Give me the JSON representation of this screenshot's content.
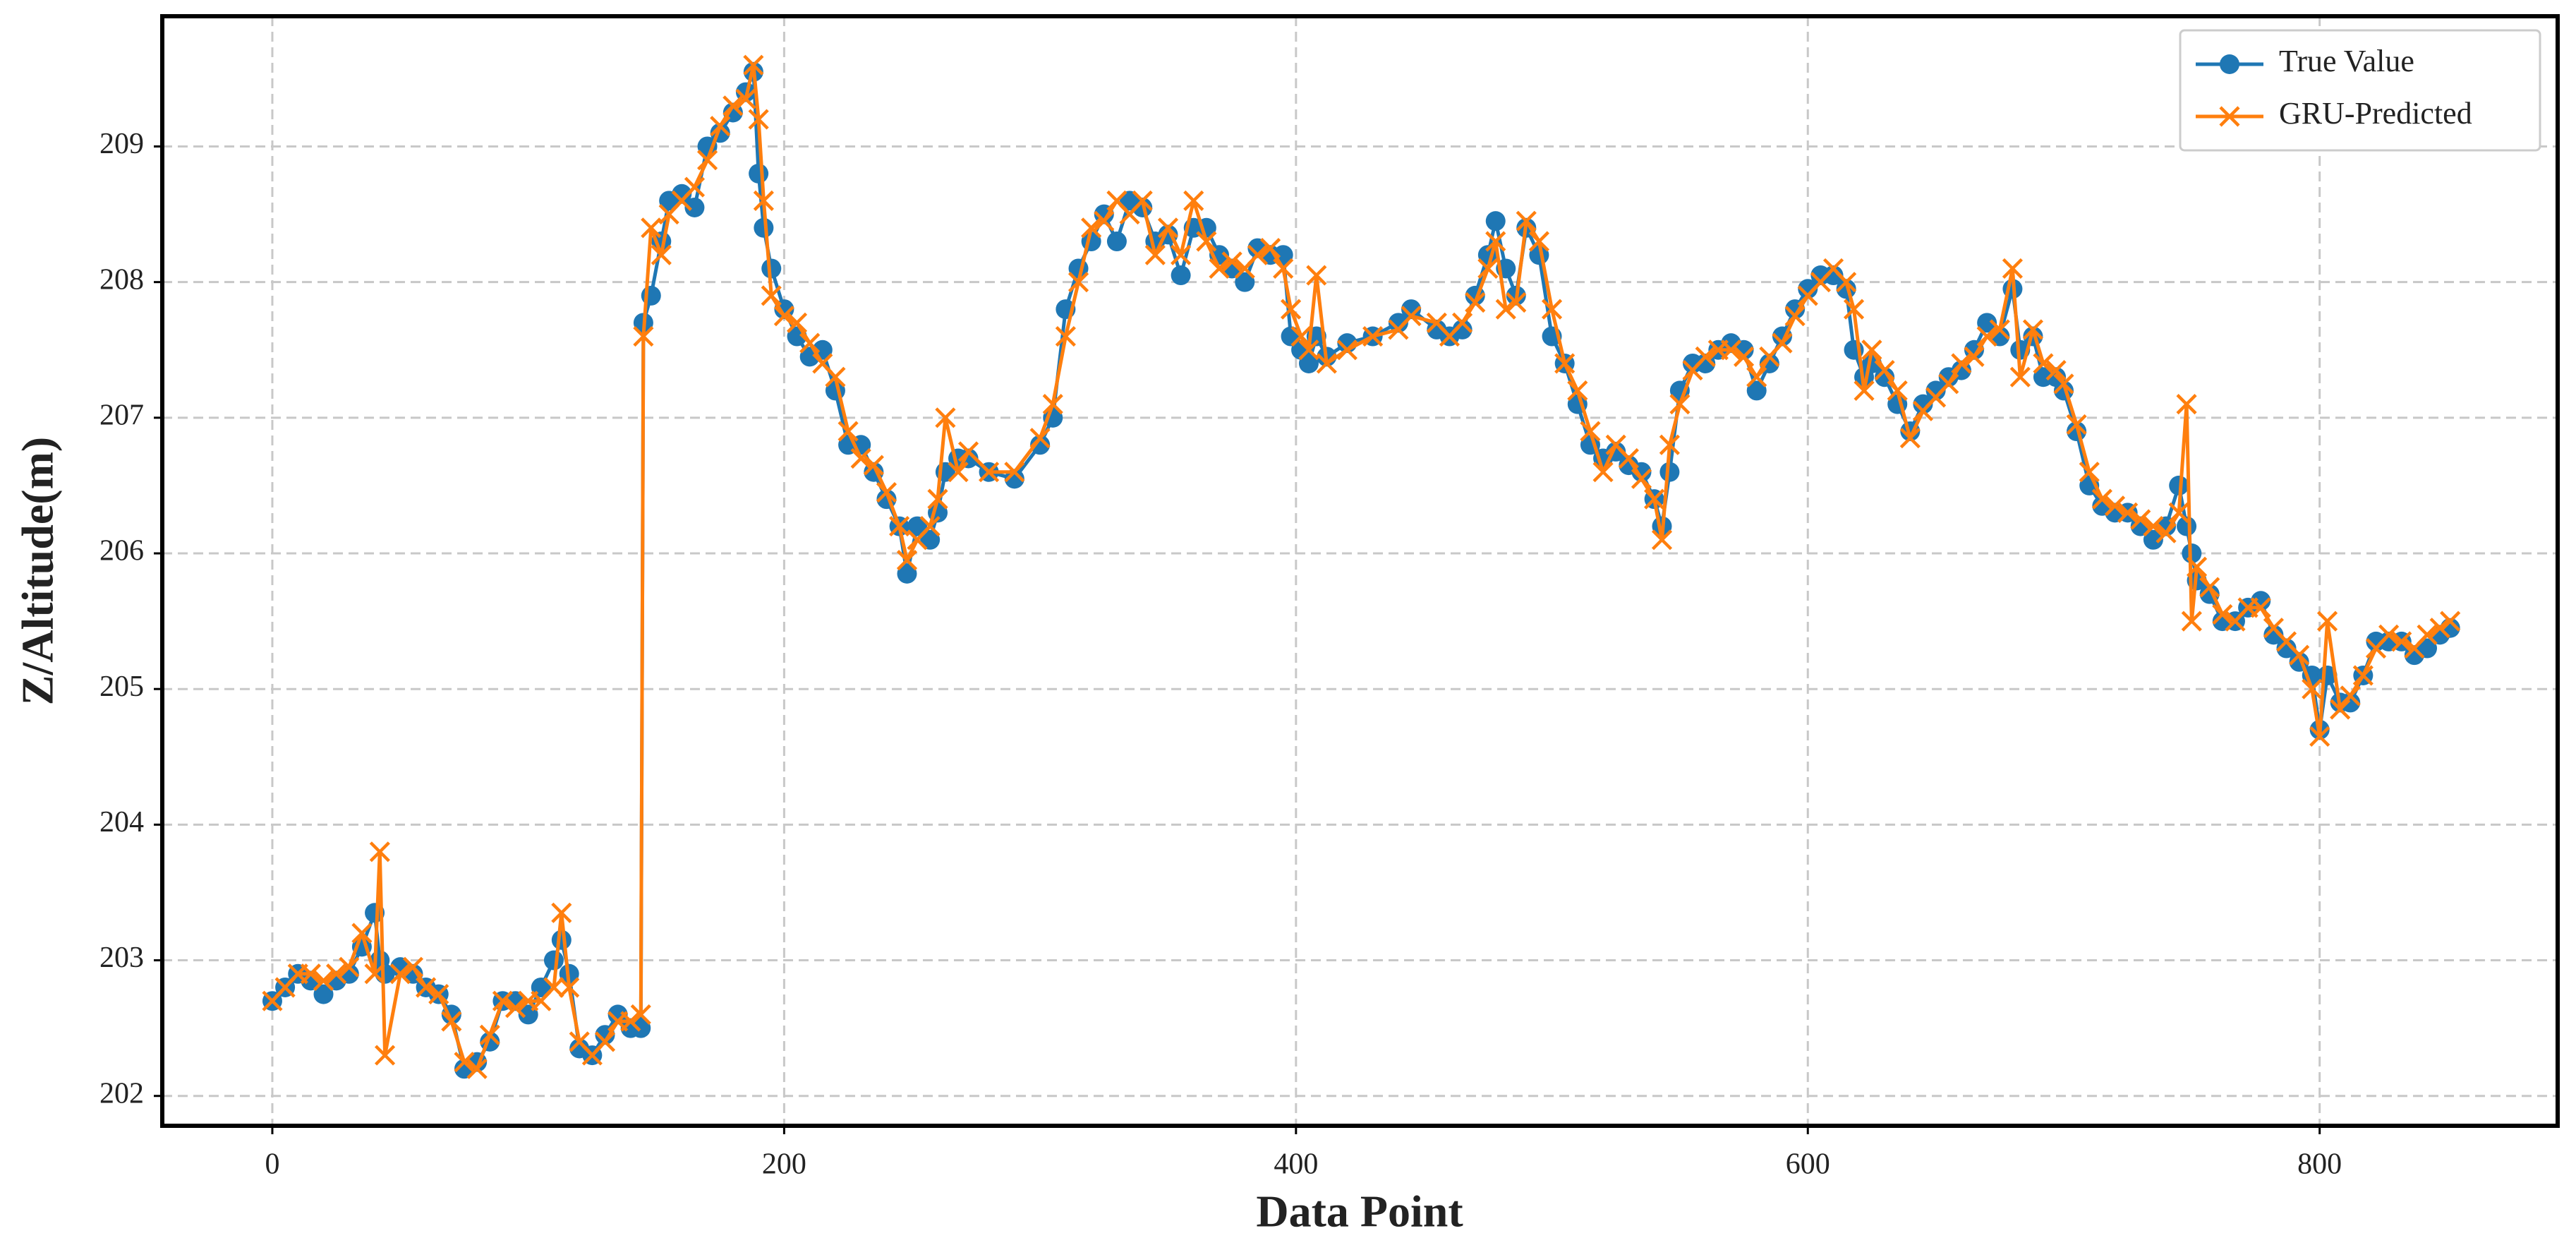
{
  "chart_data": {
    "type": "line",
    "xlabel": "Data Point",
    "ylabel": "Z/Altitude(m)",
    "x": [
      0,
      5,
      10,
      15,
      20,
      25,
      30,
      35,
      40,
      42,
      44,
      50,
      55,
      60,
      65,
      70,
      75,
      80,
      85,
      90,
      95,
      100,
      105,
      110,
      113,
      116,
      120,
      125,
      130,
      135,
      140,
      144,
      145,
      148,
      152,
      155,
      160,
      165,
      170,
      175,
      180,
      185,
      188,
      190,
      192,
      195,
      200,
      205,
      210,
      215,
      220,
      225,
      230,
      235,
      240,
      245,
      248,
      252,
      257,
      260,
      263,
      268,
      272,
      280,
      290,
      300,
      305,
      310,
      315,
      320,
      325,
      330,
      335,
      340,
      345,
      350,
      355,
      360,
      365,
      370,
      375,
      380,
      385,
      390,
      395,
      398,
      402,
      405,
      408,
      412,
      420,
      430,
      440,
      445,
      455,
      460,
      465,
      470,
      475,
      478,
      482,
      486,
      490,
      495,
      500,
      505,
      510,
      515,
      520,
      525,
      530,
      535,
      540,
      543,
      546,
      550,
      555,
      560,
      565,
      570,
      575,
      580,
      585,
      590,
      595,
      600,
      605,
      610,
      615,
      618,
      622,
      625,
      630,
      635,
      640,
      645,
      650,
      655,
      660,
      665,
      670,
      675,
      680,
      683,
      688,
      692,
      697,
      700,
      705,
      710,
      715,
      720,
      725,
      730,
      735,
      740,
      745,
      748,
      750,
      752,
      757,
      762,
      767,
      772,
      777,
      782,
      787,
      792,
      797,
      800,
      803,
      808,
      812,
      817,
      822,
      827,
      832,
      837,
      842,
      847,
      851
    ],
    "series": [
      {
        "name": "True Value",
        "color": "#1f77b4",
        "marker": "circle",
        "values": [
          202.7,
          202.8,
          202.9,
          202.85,
          202.75,
          202.85,
          202.9,
          203.1,
          203.35,
          203.0,
          202.9,
          202.95,
          202.9,
          202.8,
          202.75,
          202.6,
          202.2,
          202.25,
          202.4,
          202.7,
          202.7,
          202.6,
          202.8,
          203.0,
          203.15,
          202.9,
          202.35,
          202.3,
          202.45,
          202.6,
          202.5,
          202.5,
          207.7,
          207.9,
          208.3,
          208.6,
          208.65,
          208.55,
          209.0,
          209.1,
          209.25,
          209.4,
          209.55,
          208.8,
          208.4,
          208.1,
          207.8,
          207.6,
          207.45,
          207.5,
          207.2,
          206.8,
          206.8,
          206.6,
          206.4,
          206.2,
          205.85,
          206.2,
          206.1,
          206.3,
          206.6,
          206.7,
          206.7,
          206.6,
          206.55,
          206.8,
          207.0,
          207.8,
          208.1,
          208.3,
          208.5,
          208.3,
          208.6,
          208.55,
          208.3,
          208.35,
          208.05,
          208.4,
          208.4,
          208.2,
          208.1,
          208.0,
          208.25,
          208.2,
          208.2,
          207.6,
          207.5,
          207.4,
          207.6,
          207.45,
          207.55,
          207.6,
          207.7,
          207.8,
          207.65,
          207.6,
          207.65,
          207.9,
          208.2,
          208.45,
          208.1,
          207.9,
          208.4,
          208.2,
          207.6,
          207.4,
          207.1,
          206.8,
          206.7,
          206.75,
          206.65,
          206.6,
          206.4,
          206.2,
          206.6,
          207.2,
          207.4,
          207.4,
          207.5,
          207.55,
          207.5,
          207.2,
          207.4,
          207.6,
          207.8,
          207.95,
          208.05,
          208.05,
          207.95,
          207.5,
          207.3,
          207.4,
          207.3,
          207.1,
          206.9,
          207.1,
          207.2,
          207.3,
          207.35,
          207.5,
          207.7,
          207.6,
          207.95,
          207.5,
          207.6,
          207.3,
          207.3,
          207.2,
          206.9,
          206.5,
          206.35,
          206.3,
          206.3,
          206.2,
          206.1,
          206.2,
          206.5,
          206.2,
          206.0,
          205.8,
          205.7,
          205.5,
          205.5,
          205.6,
          205.65,
          205.4,
          205.3,
          205.2,
          205.1,
          204.7,
          205.1,
          204.9,
          204.9,
          205.1,
          205.35,
          205.35,
          205.35,
          205.25,
          205.3,
          205.4,
          205.45
        ]
      },
      {
        "name": "GRU-Predicted",
        "color": "#ff7f0e",
        "marker": "x",
        "values": [
          202.7,
          202.8,
          202.9,
          202.9,
          202.85,
          202.9,
          202.95,
          203.2,
          202.9,
          203.8,
          202.3,
          202.9,
          202.95,
          202.8,
          202.75,
          202.55,
          202.25,
          202.2,
          202.45,
          202.7,
          202.65,
          202.7,
          202.7,
          202.8,
          203.35,
          202.8,
          202.4,
          202.3,
          202.4,
          202.55,
          202.55,
          202.6,
          207.6,
          208.4,
          208.2,
          208.5,
          208.6,
          208.7,
          208.9,
          209.15,
          209.3,
          209.35,
          209.6,
          209.2,
          208.6,
          207.9,
          207.75,
          207.7,
          207.55,
          207.4,
          207.3,
          206.9,
          206.7,
          206.65,
          206.45,
          206.2,
          205.95,
          206.1,
          206.2,
          206.4,
          207.0,
          206.6,
          206.75,
          206.6,
          206.6,
          206.85,
          207.1,
          207.6,
          208.0,
          208.4,
          208.45,
          208.6,
          208.5,
          208.6,
          208.2,
          208.4,
          208.2,
          208.6,
          208.3,
          208.1,
          208.15,
          208.1,
          208.2,
          208.25,
          208.1,
          207.8,
          207.6,
          207.5,
          208.05,
          207.4,
          207.5,
          207.6,
          207.65,
          207.75,
          207.7,
          207.6,
          207.7,
          207.85,
          208.1,
          208.3,
          207.8,
          207.85,
          208.45,
          208.3,
          207.8,
          207.4,
          207.2,
          206.9,
          206.6,
          206.8,
          206.7,
          206.55,
          206.4,
          206.1,
          206.8,
          207.1,
          207.35,
          207.45,
          207.5,
          207.5,
          207.45,
          207.3,
          207.45,
          207.55,
          207.75,
          207.9,
          208.0,
          208.1,
          208.0,
          207.8,
          207.2,
          207.5,
          207.35,
          207.2,
          206.85,
          207.05,
          207.15,
          207.25,
          207.4,
          207.45,
          207.6,
          207.65,
          208.1,
          207.3,
          207.65,
          207.4,
          207.35,
          207.25,
          206.95,
          206.6,
          206.4,
          206.35,
          206.3,
          206.25,
          206.2,
          206.15,
          206.3,
          207.1,
          205.5,
          205.9,
          205.75,
          205.55,
          205.5,
          205.6,
          205.6,
          205.45,
          205.35,
          205.25,
          205.0,
          204.65,
          205.5,
          204.85,
          204.95,
          205.1,
          205.3,
          205.4,
          205.35,
          205.3,
          205.4,
          205.45,
          205.5
        ]
      }
    ],
    "xlim": [
      -43,
      893
    ],
    "ylim": [
      201.78,
      209.96
    ],
    "xticks": [
      0,
      200,
      400,
      600,
      800
    ],
    "yticks": [
      202,
      203,
      204,
      205,
      206,
      207,
      208,
      209
    ],
    "grid": true,
    "legend": "upper right"
  }
}
